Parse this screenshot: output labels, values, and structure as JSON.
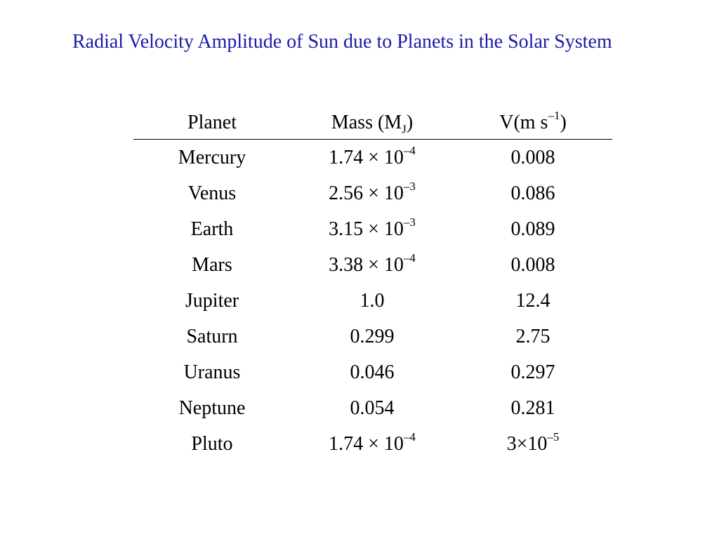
{
  "title": "Radial Velocity Amplitude of Sun due to Planets in the Solar System",
  "headers": {
    "planet": "Planet",
    "mass": {
      "text": "Mass (M",
      "sub": "J",
      "close": ")"
    },
    "velocity": {
      "text": "V(m s",
      "sup": "–1",
      "close": ")"
    }
  },
  "rows": [
    {
      "planet": "Mercury",
      "mass": {
        "base": "1.74 × 10",
        "exp": "–4"
      },
      "velocity": {
        "base": "0.008",
        "exp": ""
      }
    },
    {
      "planet": "Venus",
      "mass": {
        "base": "2.56 × 10",
        "exp": "–3"
      },
      "velocity": {
        "base": "0.086",
        "exp": ""
      }
    },
    {
      "planet": "Earth",
      "mass": {
        "base": "3.15 × 10",
        "exp": "–3"
      },
      "velocity": {
        "base": "0.089",
        "exp": ""
      }
    },
    {
      "planet": "Mars",
      "mass": {
        "base": "3.38 × 10",
        "exp": "–4"
      },
      "velocity": {
        "base": "0.008",
        "exp": ""
      }
    },
    {
      "planet": "Jupiter",
      "mass": {
        "base": "1.0",
        "exp": ""
      },
      "velocity": {
        "base": "12.4",
        "exp": ""
      }
    },
    {
      "planet": "Saturn",
      "mass": {
        "base": "0.299",
        "exp": ""
      },
      "velocity": {
        "base": "2.75",
        "exp": ""
      }
    },
    {
      "planet": "Uranus",
      "mass": {
        "base": "0.046",
        "exp": ""
      },
      "velocity": {
        "base": "0.297",
        "exp": ""
      }
    },
    {
      "planet": "Neptune",
      "mass": {
        "base": "0.054",
        "exp": ""
      },
      "velocity": {
        "base": "0.281",
        "exp": ""
      }
    },
    {
      "planet": "Pluto",
      "mass": {
        "base": "1.74 × 10",
        "exp": "–4"
      },
      "velocity": {
        "base": "3×10",
        "exp": "–5"
      }
    }
  ],
  "colors": {
    "title": "#1a1aa8",
    "text": "#000000",
    "background": "#ffffff"
  }
}
